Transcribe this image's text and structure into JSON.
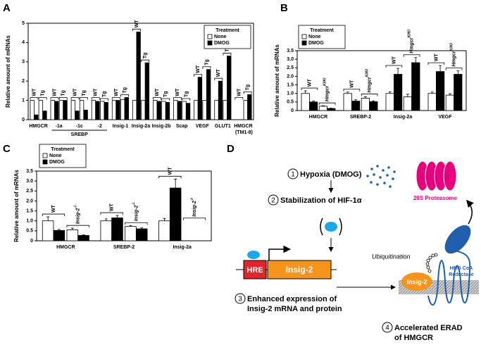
{
  "panel_labels": [
    "A",
    "B",
    "C",
    "D"
  ],
  "chart_data": [
    {
      "type": "bar",
      "y_label": "Relative amount of mRNAs",
      "legend_title": "Treatment",
      "categories": [
        "HMGCR",
        "-1a",
        "-1c",
        "-2",
        "Insig-1",
        "Insig-2a",
        "Insig-2b",
        "Scap",
        "VEGF",
        "GLUT1",
        "HMGCR (TM1-8)"
      ],
      "x_group_label": "SREBP",
      "subgroups": [
        {
          "label": "WT"
        },
        {
          "label": "Tg"
        }
      ],
      "series": [
        {
          "name": "None",
          "color": "#ffffff",
          "values": [
            [
              1,
              1
            ],
            [
              1,
              1
            ],
            [
              1,
              1
            ],
            [
              1,
              0.95
            ],
            [
              1,
              1.05
            ],
            [
              1,
              1
            ],
            [
              1,
              0.95
            ],
            [
              1,
              0.95
            ],
            [
              1,
              1
            ],
            [
              1,
              1
            ],
            [
              null,
              1
            ]
          ]
        },
        {
          "name": "DMOG",
          "color": "#000000",
          "values": [
            [
              0.25,
              0.45
            ],
            [
              0.95,
              1
            ],
            [
              0.45,
              0.5
            ],
            [
              0.95,
              0.9
            ],
            [
              1,
              1.15
            ],
            [
              4.55,
              2.95
            ],
            [
              0.95,
              0.9
            ],
            [
              0.95,
              0.85
            ],
            [
              2.2,
              2.6
            ],
            [
              2.0,
              3.3
            ],
            [
              null,
              1.3
            ]
          ]
        }
      ],
      "ylim": [
        0,
        5
      ],
      "yticks": [
        0,
        1,
        2,
        3,
        4,
        5
      ]
    },
    {
      "type": "bar",
      "y_label": "Relative amount of mRNAs",
      "legend_title": "Treatment",
      "categories": [
        "HMGCR",
        "SREBP-2",
        "Insig-2a",
        "VEGF"
      ],
      "subgroups": [
        {
          "label": "WT"
        },
        {
          "label": "Hmgcr",
          "sup": "KI/KI"
        }
      ],
      "series": [
        {
          "name": "None",
          "color": "#ffffff",
          "values": [
            [
              1,
              0.25
            ],
            [
              1,
              0.72
            ],
            [
              1,
              0.8
            ],
            [
              1,
              0.9
            ]
          ],
          "errors": [
            [
              0.15,
              0.03
            ],
            [
              0.08,
              0.08
            ],
            [
              0.1,
              0.15
            ],
            [
              0.08,
              0.08
            ]
          ]
        },
        {
          "name": "DMOG",
          "color": "#000000",
          "values": [
            [
              0.5,
              0.12
            ],
            [
              0.55,
              0.52
            ],
            [
              2.12,
              2.8
            ],
            [
              2.28,
              2.12
            ]
          ],
          "errors": [
            [
              0.05,
              0.02
            ],
            [
              0.08,
              0.05
            ],
            [
              0.35,
              0.3
            ],
            [
              0.35,
              0.2
            ]
          ]
        }
      ],
      "ylim": [
        0,
        3.5
      ],
      "yticks": [
        0,
        0.5,
        {
          "value": 1,
          "label": "1.0"
        },
        1.5,
        {
          "value": 2,
          "label": "2.0"
        },
        2.5,
        {
          "value": 3,
          "label": "3.0"
        },
        3.5
      ]
    },
    {
      "type": "bar",
      "y_label": "Relative amount of mRNAs",
      "legend_title": "Treatment",
      "categories": [
        "HMGCR",
        "SREBP-2",
        "Insig-2a"
      ],
      "subgroups": [
        {
          "label": "WT"
        },
        {
          "label": "Insig-2",
          "sup": "-/-"
        }
      ],
      "series": [
        {
          "name": "None",
          "color": "#ffffff",
          "values": [
            [
              1,
              0.55
            ],
            [
              1,
              0.72
            ],
            [
              1,
              null
            ]
          ],
          "errors": [
            [
              0.2,
              0.08
            ],
            [
              0.1,
              0.05
            ],
            [
              0.12,
              null
            ]
          ]
        },
        {
          "name": "DMOG",
          "color": "#000000",
          "values": [
            [
              0.52,
              0.27
            ],
            [
              1.15,
              0.6
            ],
            [
              2.65,
              null
            ]
          ],
          "errors": [
            [
              0.05,
              0.03
            ],
            [
              0.12,
              0.05
            ],
            [
              0.45,
              null
            ]
          ]
        }
      ],
      "ylim": [
        0,
        3.5
      ],
      "yticks": [
        0,
        0.5,
        {
          "value": 1,
          "label": "1.0"
        },
        1.5,
        {
          "value": 2,
          "label": "2.0"
        },
        2.5,
        {
          "value": 3,
          "label": "3.0"
        },
        3.5
      ]
    }
  ],
  "diagram": {
    "steps": [
      {
        "number": "1",
        "lines": [
          "Hypoxia (DMOG)"
        ]
      },
      {
        "number": "2",
        "lines": [
          "Stabilization of HIF-1α"
        ]
      },
      {
        "number": "3",
        "lines": [
          "Enhanced expression of",
          "Insig-2 mRNA and protein"
        ]
      },
      {
        "number": "4",
        "lines": [
          "Accelerated ERAD",
          "of HMGCR"
        ]
      }
    ],
    "hre": "HRE",
    "gene": "Insig-2",
    "protein": "Insig-2",
    "ubiquitination": "Ubiquitination",
    "proteasome": "26S Proteasome",
    "reductase": [
      "HMG CoA",
      "Reductase"
    ]
  }
}
